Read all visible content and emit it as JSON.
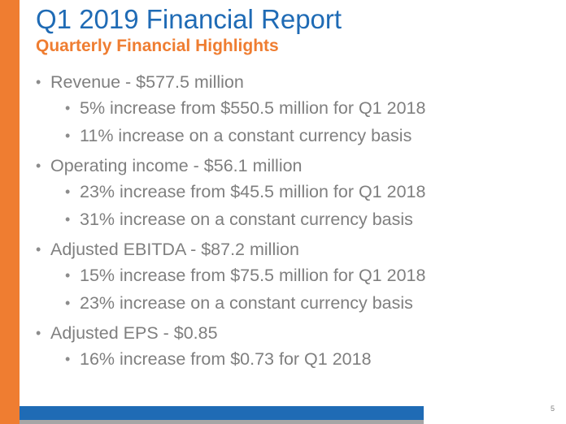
{
  "slide": {
    "title": "Q1 2019 Financial Report",
    "subtitle": "Quarterly Financial Highlights",
    "page_number": "5"
  },
  "bullets": [
    {
      "text": "Revenue - $577.5 million",
      "sub": [
        "5% increase from $550.5 million for Q1 2018",
        "11% increase on a constant currency basis"
      ]
    },
    {
      "text": "Operating income - $56.1 million",
      "sub": [
        "23% increase from $45.5 million for Q1 2018",
        "31% increase on a constant currency basis"
      ]
    },
    {
      "text": "Adjusted EBITDA - $87.2 million",
      "sub": [
        "15% increase from $75.5 million for Q1 2018",
        "23% increase on a constant currency basis"
      ]
    },
    {
      "text": "Adjusted EPS - $0.85",
      "sub": [
        "16% increase from $0.73 for Q1 2018"
      ]
    }
  ],
  "colors": {
    "accent_orange": "#ef7d31",
    "accent_blue": "#1f6bb5",
    "body_text": "#7f7f7f",
    "footer_gray": "#a6a6a6"
  }
}
